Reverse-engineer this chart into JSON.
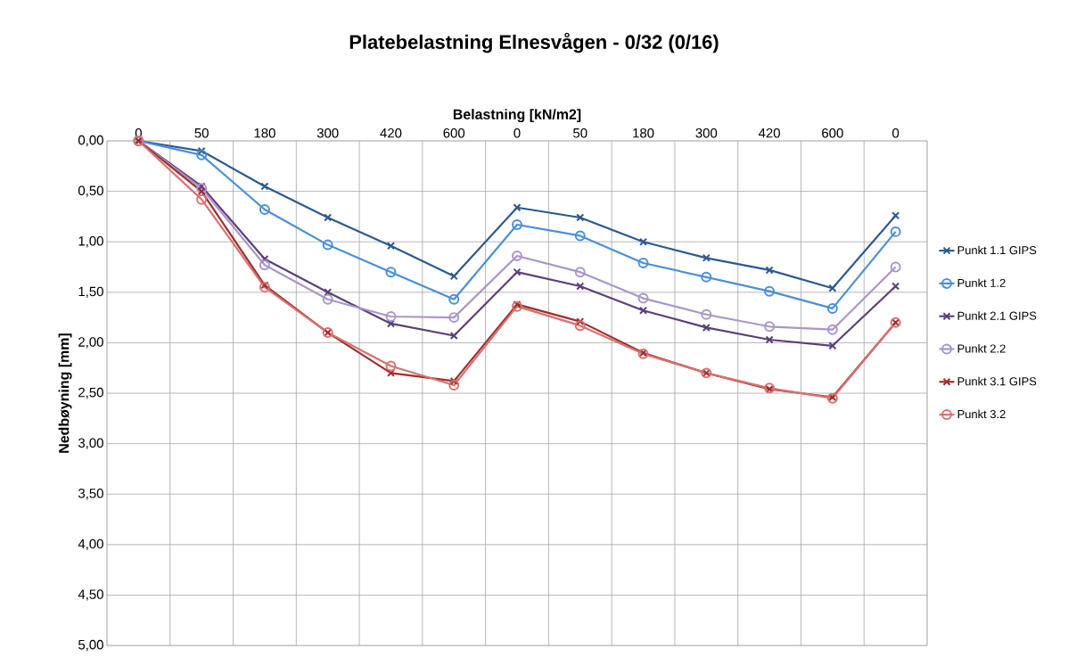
{
  "chart_data": {
    "type": "line",
    "title": "Platebelastning Elnesvågen - 0/32 (0/16)",
    "xlabel": "Belastning [kN/m2]",
    "ylabel": "Nedbøyning [mm]",
    "categories": [
      "0",
      "50",
      "180",
      "300",
      "420",
      "600",
      "0",
      "50",
      "180",
      "300",
      "420",
      "600",
      "0"
    ],
    "series": [
      {
        "name": "Punkt 1.1 GIPS",
        "color": "#2c5a8e",
        "marker": "cross",
        "values": [
          0,
          0.1,
          0.45,
          0.76,
          1.04,
          1.34,
          0.66,
          0.76,
          1.0,
          1.16,
          1.28,
          1.46,
          0.74
        ]
      },
      {
        "name": "Punkt 1.2",
        "color": "#4a8fd8",
        "marker": "circle",
        "values": [
          0,
          0.14,
          0.68,
          1.03,
          1.3,
          1.57,
          0.83,
          0.94,
          1.21,
          1.35,
          1.49,
          1.66,
          0.9
        ]
      },
      {
        "name": "Punkt 2.1 GIPS",
        "color": "#5b3f7c",
        "marker": "cross",
        "values": [
          0,
          0.45,
          1.17,
          1.5,
          1.81,
          1.93,
          1.3,
          1.44,
          1.68,
          1.85,
          1.97,
          2.03,
          1.44
        ]
      },
      {
        "name": "Punkt 2.2",
        "color": "#a996c9",
        "marker": "circle",
        "values": [
          0,
          0.47,
          1.23,
          1.57,
          1.74,
          1.75,
          1.14,
          1.3,
          1.56,
          1.72,
          1.84,
          1.87,
          1.25
        ]
      },
      {
        "name": "Punkt 3.1 GIPS",
        "color": "#9c2f2f",
        "marker": "cross",
        "values": [
          0,
          0.5,
          1.43,
          1.9,
          2.3,
          2.38,
          1.62,
          1.79,
          2.1,
          2.3,
          2.46,
          2.54,
          1.8
        ]
      },
      {
        "name": "Punkt 3.2",
        "color": "#d9716f",
        "marker": "circle",
        "values": [
          0,
          0.58,
          1.45,
          1.9,
          2.23,
          2.42,
          1.64,
          1.83,
          2.11,
          2.3,
          2.45,
          2.55,
          1.8
        ]
      }
    ],
    "ylim": [
      5,
      0
    ],
    "yticks": [
      {
        "value": 0,
        "label": "0,00"
      },
      {
        "value": 0.5,
        "label": "0,50"
      },
      {
        "value": 1,
        "label": "1,00"
      },
      {
        "value": 1.5,
        "label": "1,50"
      },
      {
        "value": 2,
        "label": "2,00"
      },
      {
        "value": 2.5,
        "label": "2,50"
      },
      {
        "value": 3,
        "label": "3,00"
      },
      {
        "value": 3.5,
        "label": "3,50"
      },
      {
        "value": 4,
        "label": "4,00"
      },
      {
        "value": 4.5,
        "label": "4,50"
      },
      {
        "value": 5,
        "label": "5,00"
      }
    ],
    "grid": true,
    "legend": "right"
  }
}
